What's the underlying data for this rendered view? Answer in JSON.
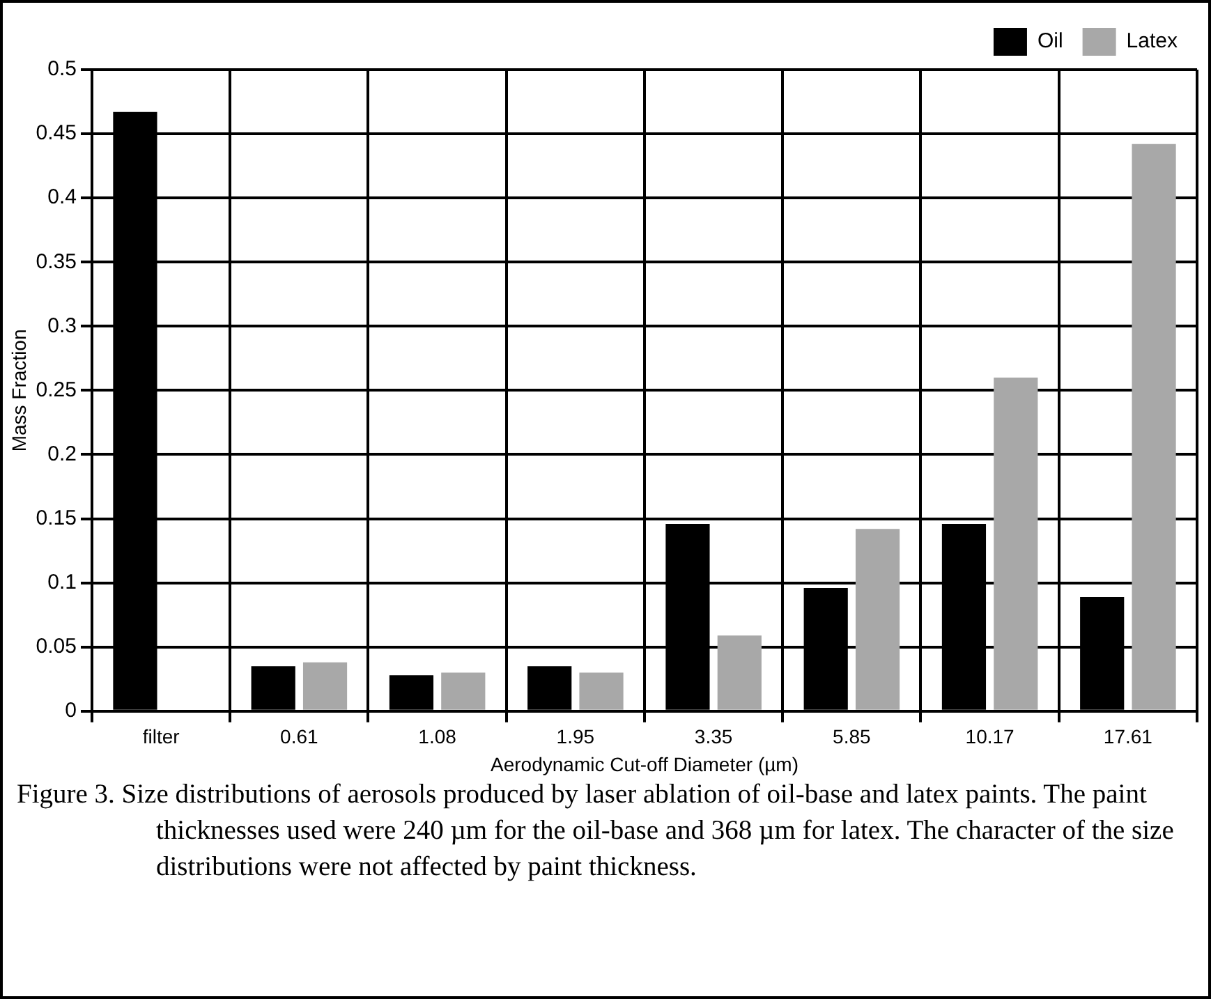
{
  "chart_data": {
    "type": "bar",
    "xlabel": "Aerodynamic Cut-off Diameter (µm)",
    "ylabel": "Mass Fraction",
    "categories": [
      "filter",
      "0.61",
      "1.08",
      "1.95",
      "3.35",
      "5.85",
      "10.17",
      "17.61"
    ],
    "series": [
      {
        "name": "Oil",
        "color": "#000000",
        "values": [
          0.467,
          0.035,
          0.028,
          0.035,
          0.146,
          0.096,
          0.146,
          0.089
        ]
      },
      {
        "name": "Latex",
        "color": "#a8a8a8",
        "values": [
          0,
          0.038,
          0.03,
          0.03,
          0.059,
          0.142,
          0.26,
          0.442
        ]
      }
    ],
    "ylim": [
      0,
      0.5
    ],
    "yticks": [
      0,
      0.05,
      0.1,
      0.15,
      0.2,
      0.25,
      0.3,
      0.35,
      0.4,
      0.45,
      0.5
    ],
    "grid": true,
    "legend": "top right",
    "annotations": [
      "Figure 3. Size distributions of aerosols produced by laser ablation of oil-base and latex paints. The paint thicknesses used were 240 µm for the oil-base and 368 µm for latex. The character of the size distributions were not affected by paint thickness."
    ]
  }
}
